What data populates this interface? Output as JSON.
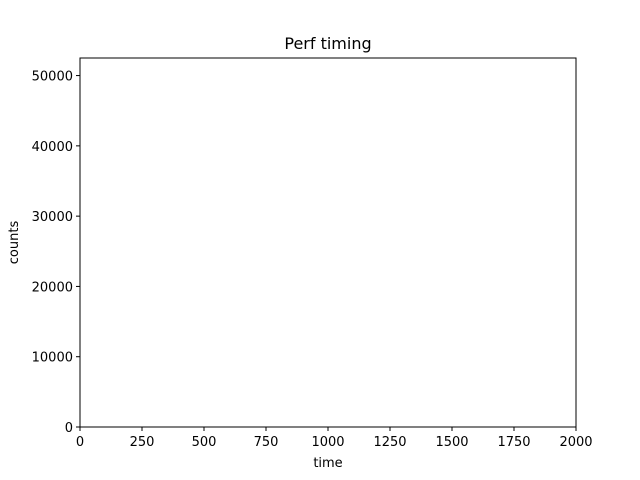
{
  "chart_data": {
    "type": "bar",
    "title": "Perf timing",
    "xlabel": "time",
    "ylabel": "counts",
    "xlim": [
      0,
      2000
    ],
    "ylim": [
      0,
      52500
    ],
    "xticks": [
      0,
      250,
      500,
      750,
      1000,
      1250,
      1500,
      1750,
      2000
    ],
    "xtick_labels": [
      "0",
      "250",
      "500",
      "750",
      "1000",
      "1250",
      "1500",
      "1750",
      "2000"
    ],
    "yticks": [
      0,
      10000,
      20000,
      30000,
      40000,
      50000
    ],
    "ytick_labels": [
      "0",
      "10000",
      "20000",
      "30000",
      "40000",
      "50000"
    ],
    "grid": false,
    "series": [],
    "colors": {
      "axis": "#000000",
      "background": "#ffffff"
    }
  }
}
